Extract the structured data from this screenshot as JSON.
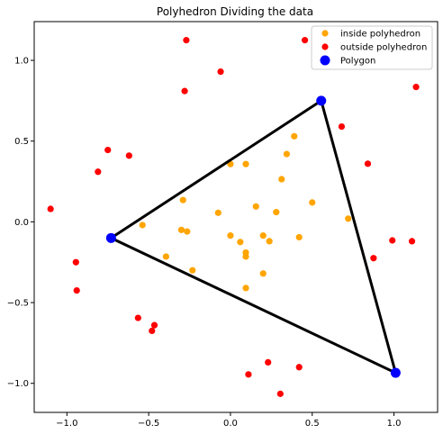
{
  "chart_data": {
    "type": "scatter",
    "title": "Polyhedron Dividing the data",
    "xlabel": "",
    "ylabel": "",
    "xlim": [
      -1.2,
      1.2667
    ],
    "ylim": [
      -1.18,
      1.24
    ],
    "xticks": [
      -1.0,
      -0.5,
      0.0,
      0.5,
      1.0
    ],
    "xtick_labels": [
      "−1.0",
      "−0.5",
      "0.0",
      "0.5",
      "1.0"
    ],
    "yticks": [
      -1.0,
      -0.5,
      0.0,
      0.5,
      1.0
    ],
    "ytick_labels": [
      "−1.0",
      "−0.5",
      "0.0",
      "0.5",
      "1.0"
    ],
    "grid": false,
    "legend_position": "top-right",
    "series": [
      {
        "name": "inside polyhedron",
        "kind": "points",
        "color": "#ffa500",
        "x": [
          0.0,
          0.094,
          0.39,
          0.344,
          0.313,
          -0.29,
          0.156,
          0.5,
          0.72,
          0.28,
          -0.075,
          -0.538,
          -0.3,
          -0.265,
          0.0,
          0.06,
          0.2,
          0.094,
          0.094,
          0.238,
          0.42,
          -0.394,
          -0.232,
          0.2,
          0.094
        ],
        "y": [
          0.358,
          0.358,
          0.53,
          0.42,
          0.264,
          0.135,
          0.095,
          0.12,
          0.02,
          0.06,
          0.056,
          -0.02,
          -0.05,
          -0.06,
          -0.085,
          -0.125,
          -0.085,
          -0.19,
          -0.215,
          -0.12,
          -0.095,
          -0.215,
          -0.3,
          -0.32,
          -0.41
        ]
      },
      {
        "name": "outside polyhedron",
        "kind": "points",
        "color": "#ff0000",
        "x": [
          -0.27,
          0.455,
          -0.06,
          1.135,
          -0.28,
          -0.75,
          -0.62,
          -0.81,
          0.68,
          0.84,
          -1.1,
          0.99,
          1.11,
          -0.945,
          0.875,
          -0.94,
          -0.565,
          -0.465,
          -0.48,
          0.42,
          0.23,
          0.11,
          0.305
        ],
        "y": [
          1.125,
          1.125,
          0.93,
          0.835,
          0.81,
          0.445,
          0.41,
          0.31,
          0.59,
          0.36,
          0.08,
          -0.115,
          -0.12,
          -0.25,
          -0.225,
          -0.425,
          -0.595,
          -0.64,
          -0.675,
          -0.9,
          -0.87,
          -0.945,
          -1.065
        ]
      },
      {
        "name": "Polygon",
        "kind": "polygon",
        "color": "#0000ff",
        "edge_color": "#000000",
        "x": [
          -0.73,
          0.555,
          1.01
        ],
        "y": [
          -0.1,
          0.75,
          -0.935
        ]
      }
    ]
  }
}
